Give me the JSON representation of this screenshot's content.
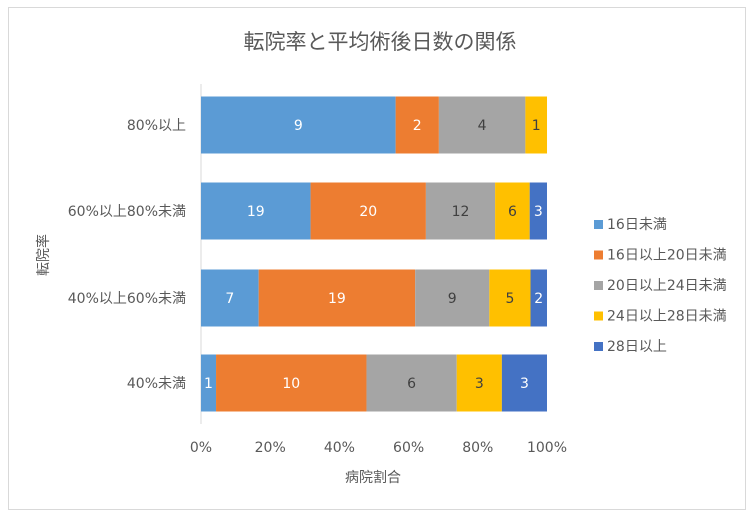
{
  "chart_data": {
    "type": "bar",
    "orientation": "horizontal",
    "stacking": "percent",
    "title": "転院率と平均術後日数の関係",
    "xlabel": "病院割合",
    "ylabel": "転院率",
    "categories": [
      "80%以上",
      "60%以上80%未満",
      "40%以上60%未満",
      "40%未満"
    ],
    "series": [
      {
        "name": "16日未満",
        "color": "#5B9BD5",
        "label_color": "#ffffff",
        "values": [
          9,
          19,
          7,
          1
        ]
      },
      {
        "name": "16日以上20日未満",
        "color": "#ED7D31",
        "label_color": "#ffffff",
        "values": [
          2,
          20,
          19,
          10
        ]
      },
      {
        "name": "20日以上24日未満",
        "color": "#A5A5A5",
        "label_color": "#404040",
        "values": [
          4,
          12,
          9,
          6
        ]
      },
      {
        "name": "24日以上28日未満",
        "color": "#FFC000",
        "label_color": "#404040",
        "values": [
          1,
          6,
          5,
          3
        ]
      },
      {
        "name": "28日以上",
        "color": "#4472C4",
        "label_color": "#ffffff",
        "values": [
          0,
          3,
          2,
          3
        ]
      }
    ],
    "x_ticks": [
      "0%",
      "20%",
      "40%",
      "60%",
      "80%",
      "100%"
    ],
    "xlim": [
      0,
      100
    ],
    "grid": false,
    "legend_position": "right"
  }
}
